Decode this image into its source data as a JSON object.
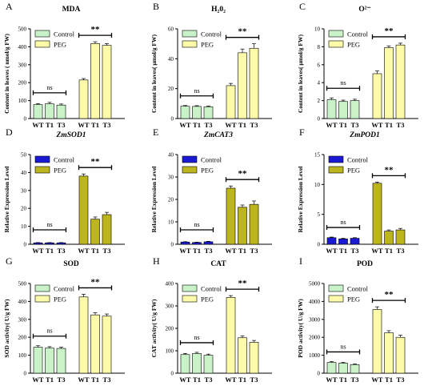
{
  "chart_data": [
    {
      "panel": "A",
      "title": "MDA",
      "title_italic": false,
      "type": "bar",
      "ylabel": "Content in leaves ( nmol/g FW)",
      "ylim": [
        0,
        500
      ],
      "yticks": [
        "0",
        "100",
        "200",
        "300",
        "400",
        "500"
      ],
      "categories": [
        "WT",
        "T1",
        "T3"
      ],
      "series": [
        {
          "name": "Control",
          "color": "#c9f2c9",
          "values": [
            78,
            82,
            75
          ],
          "errors": [
            5,
            8,
            6
          ]
        },
        {
          "name": "PEG",
          "color": "#fdfaa9",
          "values": [
            215,
            418,
            408
          ],
          "errors": [
            8,
            10,
            9
          ]
        }
      ],
      "significance": {
        "control": "ns",
        "treatment": "**"
      }
    },
    {
      "panel": "B",
      "title": "H₂0₂",
      "title_italic": false,
      "type": "bar",
      "ylabel": "Content in leaves( μmol/g FW)",
      "ylim": [
        0,
        60
      ],
      "yticks": [
        "0",
        "20",
        "40",
        "60"
      ],
      "categories": [
        "WT",
        "T1",
        "T3"
      ],
      "series": [
        {
          "name": "Control",
          "color": "#c9f2c9",
          "values": [
            8.2,
            8.1,
            7.9
          ],
          "errors": [
            0.5,
            0.5,
            0.5
          ]
        },
        {
          "name": "PEG",
          "color": "#fdfaa9",
          "values": [
            22,
            44,
            47
          ],
          "errors": [
            1.5,
            2.5,
            3
          ]
        }
      ],
      "significance": {
        "control": "ns",
        "treatment": "**"
      }
    },
    {
      "panel": "C",
      "title": "O²⁻",
      "title_italic": false,
      "type": "bar",
      "ylabel": "Content in leaves( μmol/g FW)",
      "ylim": [
        0,
        10
      ],
      "yticks": [
        "0",
        "2",
        "4",
        "6",
        "8",
        "10"
      ],
      "categories": [
        "WT",
        "T1",
        "T3"
      ],
      "series": [
        {
          "name": "Control",
          "color": "#c9f2c9",
          "values": [
            2.1,
            1.9,
            2.0
          ],
          "errors": [
            0.2,
            0.15,
            0.15
          ]
        },
        {
          "name": "PEG",
          "color": "#fdfaa9",
          "values": [
            5.0,
            7.9,
            8.2
          ],
          "errors": [
            0.3,
            0.2,
            0.2
          ]
        }
      ],
      "significance": {
        "control": "ns",
        "treatment": "**"
      }
    },
    {
      "panel": "D",
      "title": "ZmSOD1",
      "title_italic": true,
      "type": "bar",
      "ylabel": "Relative Expression Level",
      "ylim": [
        0,
        50
      ],
      "yticks": [
        "0",
        "10",
        "20",
        "30",
        "40",
        "50"
      ],
      "categories": [
        "WT",
        "T1",
        "T3"
      ],
      "series": [
        {
          "name": "Control",
          "color": "#1a1ad4",
          "values": [
            0.8,
            0.8,
            0.8
          ],
          "errors": [
            0.15,
            0.15,
            0.15
          ]
        },
        {
          "name": "PEG",
          "color": "#bcb51c",
          "values": [
            38,
            14,
            16.5
          ],
          "errors": [
            1.2,
            1.2,
            1.3
          ]
        }
      ],
      "significance": {
        "control": "ns",
        "treatment": "**"
      }
    },
    {
      "panel": "E",
      "title": "ZmCAT3",
      "title_italic": true,
      "type": "bar",
      "ylabel": "Relative Expression Level",
      "ylim": [
        0,
        40
      ],
      "yticks": [
        "0",
        "10",
        "20",
        "30",
        "40"
      ],
      "categories": [
        "WT",
        "T1",
        "T3"
      ],
      "series": [
        {
          "name": "Control",
          "color": "#1a1ad4",
          "values": [
            1.0,
            0.8,
            1.1
          ],
          "errors": [
            0.15,
            0.15,
            0.2
          ]
        },
        {
          "name": "PEG",
          "color": "#bcb51c",
          "values": [
            25,
            16.5,
            17.8
          ],
          "errors": [
            1.0,
            1.0,
            1.5
          ]
        }
      ],
      "significance": {
        "control": "ns",
        "treatment": "**"
      }
    },
    {
      "panel": "F",
      "title": "ZmPOD1",
      "title_italic": true,
      "type": "bar",
      "ylabel": "Relative Expression Level",
      "ylim": [
        0,
        15
      ],
      "yticks": [
        "0",
        "5",
        "10",
        "15"
      ],
      "categories": [
        "WT",
        "T1",
        "T3"
      ],
      "series": [
        {
          "name": "Control",
          "color": "#1a1ad4",
          "values": [
            1.1,
            0.9,
            1.0
          ],
          "errors": [
            0.1,
            0.1,
            0.1
          ]
        },
        {
          "name": "PEG",
          "color": "#bcb51c",
          "values": [
            10.2,
            2.2,
            2.4
          ],
          "errors": [
            0.2,
            0.2,
            0.25
          ]
        }
      ],
      "significance": {
        "control": "ns",
        "treatment": "**"
      }
    },
    {
      "panel": "G",
      "title": "SOD",
      "title_italic": false,
      "type": "bar",
      "ylabel": "SOD activity( U/g FW)",
      "ylim": [
        0,
        500
      ],
      "yticks": [
        "0",
        "100",
        "200",
        "300",
        "400",
        "500"
      ],
      "categories": [
        "WT",
        "T1",
        "T3"
      ],
      "series": [
        {
          "name": "Control",
          "color": "#c9f2c9",
          "values": [
            145,
            140,
            138
          ],
          "errors": [
            8,
            8,
            7
          ]
        },
        {
          "name": "PEG",
          "color": "#fdfaa9",
          "values": [
            425,
            325,
            318
          ],
          "errors": [
            15,
            12,
            12
          ]
        }
      ],
      "significance": {
        "control": "ns",
        "treatment": "**"
      }
    },
    {
      "panel": "H",
      "title": "CAT",
      "title_italic": false,
      "type": "bar",
      "ylabel": "CAT activity( U/g FW)",
      "ylim": [
        0,
        400
      ],
      "yticks": [
        "0",
        "100",
        "200",
        "300",
        "400"
      ],
      "categories": [
        "WT",
        "T1",
        "T3"
      ],
      "series": [
        {
          "name": "Control",
          "color": "#c9f2c9",
          "values": [
            83,
            88,
            80
          ],
          "errors": [
            5,
            5,
            5
          ]
        },
        {
          "name": "PEG",
          "color": "#fdfaa9",
          "values": [
            338,
            158,
            138
          ],
          "errors": [
            8,
            8,
            8
          ]
        }
      ],
      "significance": {
        "control": "ns",
        "treatment": "**"
      }
    },
    {
      "panel": "I",
      "title": "POD",
      "title_italic": false,
      "type": "bar",
      "ylabel": "POD activity( U/g FW)",
      "ylim": [
        0,
        5000
      ],
      "yticks": [
        "0",
        "1000",
        "2000",
        "3000",
        "4000",
        "5000"
      ],
      "categories": [
        "WT",
        "T1",
        "T3"
      ],
      "series": [
        {
          "name": "Control",
          "color": "#c9f2c9",
          "values": [
            600,
            560,
            480
          ],
          "errors": [
            50,
            50,
            40
          ]
        },
        {
          "name": "PEG",
          "color": "#fdfaa9",
          "values": [
            3550,
            2250,
            2000
          ],
          "errors": [
            150,
            120,
            120
          ]
        }
      ],
      "significance": {
        "control": "ns",
        "treatment": "**"
      }
    }
  ]
}
